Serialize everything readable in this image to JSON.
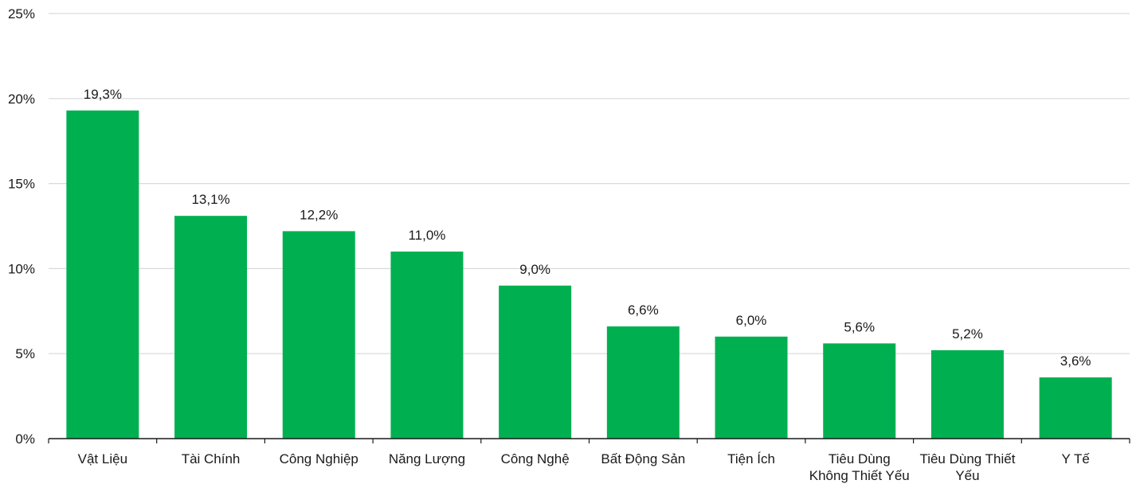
{
  "chart_data": {
    "type": "bar",
    "title": "",
    "xlabel": "",
    "ylabel": "",
    "categories": [
      [
        "Vật Liệu"
      ],
      [
        "Tài Chính"
      ],
      [
        "Công Nghiệp"
      ],
      [
        "Năng Lượng"
      ],
      [
        "Công Nghệ"
      ],
      [
        "Bất Động Sản"
      ],
      [
        "Tiện Ích"
      ],
      [
        "Tiêu Dùng",
        "Không Thiết Yếu"
      ],
      [
        "Tiêu Dùng Thiết",
        "Yếu"
      ],
      [
        "Y Tế"
      ]
    ],
    "values": [
      19.3,
      13.1,
      12.2,
      11.0,
      9.0,
      6.6,
      6.0,
      5.6,
      5.2,
      3.6
    ],
    "value_labels": [
      "19,3%",
      "13,1%",
      "12,2%",
      "11,0%",
      "9,0%",
      "6,6%",
      "6,0%",
      "5,6%",
      "5,2%",
      "3,6%"
    ],
    "y_ticks": [
      0,
      5,
      10,
      15,
      20,
      25
    ],
    "y_tick_labels": [
      "0%",
      "5%",
      "10%",
      "15%",
      "20%",
      "25%"
    ],
    "ylim": [
      0,
      25
    ],
    "grid": true,
    "legend": "none",
    "bar_color": "#00b050"
  }
}
